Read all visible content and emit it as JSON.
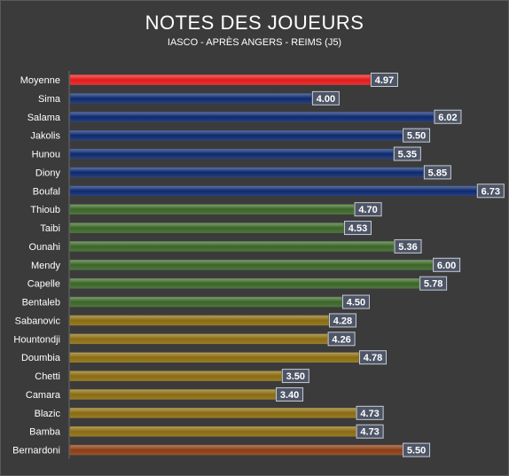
{
  "chart_data": {
    "type": "bar",
    "orientation": "horizontal",
    "title": "NOTES DES JOUEURS",
    "subtitle": "IASCO - APRÈS ANGERS - REIMS (J5)",
    "xlabel": "",
    "ylabel": "",
    "xlim": [
      0,
      7
    ],
    "grid": false,
    "legend": "none",
    "categories": [
      "Moyenne",
      "Sima",
      "Salama",
      "Jakolis",
      "Hunou",
      "Diony",
      "Boufal",
      "Thioub",
      "Taibi",
      "Ounahi",
      "Mendy",
      "Capelle",
      "Bentaleb",
      "Sabanovic",
      "Hountondji",
      "Doumbia",
      "Chetti",
      "Camara",
      "Blazic",
      "Bamba",
      "Bernardoni"
    ],
    "values": [
      4.97,
      4.0,
      6.02,
      5.5,
      5.35,
      5.85,
      6.73,
      4.7,
      4.53,
      5.36,
      6.0,
      5.78,
      4.5,
      4.28,
      4.26,
      4.78,
      3.5,
      3.4,
      4.73,
      4.73,
      5.5
    ],
    "value_labels": [
      "4.97",
      "4.00",
      "6.02",
      "5.50",
      "5.35",
      "5.85",
      "6.73",
      "4.70",
      "4.53",
      "5.36",
      "6.00",
      "5.78",
      "4.50",
      "4.28",
      "4.26",
      "4.78",
      "3.50",
      "3.40",
      "4.73",
      "4.73",
      "5.50"
    ],
    "bar_colors": [
      "#e31b1b",
      "#0e2a6e",
      "#0e2a6e",
      "#0e2a6e",
      "#0e2a6e",
      "#0e2a6e",
      "#0e2a6e",
      "#3b6628",
      "#3b6628",
      "#3b6628",
      "#3b6628",
      "#3b6628",
      "#3b6628",
      "#8a6c10",
      "#8a6c10",
      "#8a6c10",
      "#8a6c10",
      "#8a6c10",
      "#8a6c10",
      "#8a6c10",
      "#8b3d14"
    ]
  }
}
